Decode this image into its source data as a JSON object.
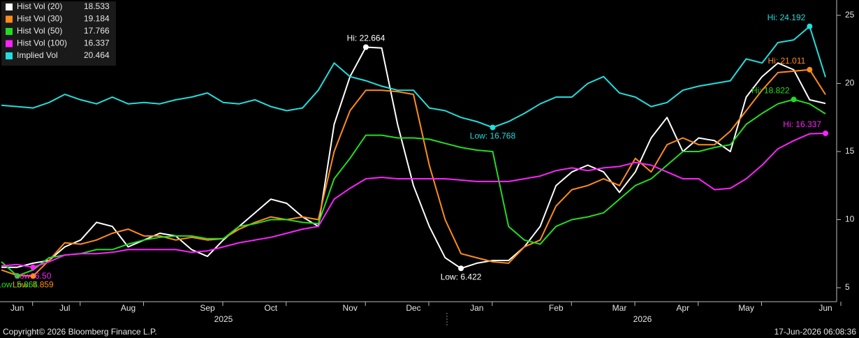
{
  "chart_data": {
    "type": "line",
    "categories": [
      null,
      "Jun",
      null,
      null,
      "Jul",
      null,
      null,
      null,
      "Aug",
      null,
      null,
      null,
      null,
      "Sep",
      null,
      null,
      null,
      "Oct",
      null,
      null,
      null,
      null,
      "Nov",
      null,
      null,
      null,
      "Dec",
      null,
      null,
      null,
      "Jan",
      null,
      null,
      null,
      null,
      "Feb",
      null,
      null,
      null,
      "Mar",
      null,
      null,
      null,
      "Apr",
      null,
      null,
      null,
      "May",
      null,
      null,
      null,
      null,
      "Jun"
    ],
    "year_labels": [
      "2025",
      "2026"
    ],
    "ylim": [
      4,
      26.1
    ],
    "yticks": [
      5,
      10,
      15,
      20,
      25
    ],
    "grid": false,
    "legend": "top-left",
    "footer": "Copyright© 2026 Bloomberg Finance L.P.",
    "timestamp": "17-Jun-2026 06:08:36",
    "series": [
      {
        "name": "Hist Vol (20)",
        "color": "#ffffff",
        "values": [
          6.5,
          6.5,
          6.8,
          7.0,
          8.0,
          8.5,
          9.8,
          9.5,
          8.0,
          8.5,
          9.0,
          8.8,
          7.8,
          7.3,
          8.5,
          9.5,
          10.5,
          11.5,
          11.2,
          10.2,
          9.5,
          17,
          20.5,
          22.664,
          22.6,
          17,
          12.5,
          9.5,
          7.2,
          6.422,
          6.8,
          7,
          7,
          8,
          9.5,
          12.5,
          13.5,
          14,
          13.5,
          12,
          13.5,
          16,
          17.5,
          15,
          16,
          15.8,
          15,
          19,
          20.5,
          21.5,
          21,
          18.8,
          18.533
        ],
        "annotations": [
          "Hi: 22.664",
          "Low: 6.422"
        ]
      },
      {
        "name": "Hist Vol (30)",
        "color": "#ff8c1a",
        "values": [
          6.3,
          5.9,
          5.859,
          7,
          8.3,
          8.2,
          8.5,
          9.0,
          9.3,
          8.8,
          8.8,
          8.5,
          8.7,
          8.5,
          8.6,
          9.3,
          9.8,
          10.2,
          10.0,
          10.2,
          10.0,
          15,
          18,
          19.5,
          19.5,
          19.4,
          19.2,
          14,
          10,
          7.5,
          7.2,
          6.9,
          6.8,
          8,
          8.5,
          11,
          12.2,
          12.5,
          13,
          12.5,
          14.5,
          13.5,
          15.5,
          16,
          15.5,
          15.5,
          16.5,
          18,
          19.5,
          20.8,
          20.9,
          21.011,
          19.184
        ],
        "annotations": [
          "Hi: 21.011",
          "Low: 5.859"
        ]
      },
      {
        "name": "Hist Vol (50)",
        "color": "#22dd22",
        "values": [
          6.9,
          5.864,
          6.3,
          7.2,
          7.4,
          7.5,
          7.8,
          7.8,
          8.2,
          8.5,
          8.7,
          8.8,
          8.8,
          8.6,
          8.6,
          9.5,
          9.7,
          10,
          10,
          9.8,
          9.7,
          13,
          14.5,
          16.2,
          16.2,
          16,
          16,
          15.9,
          15.6,
          15.3,
          15.1,
          15.0,
          9.5,
          8.5,
          8.2,
          9.5,
          10,
          10.2,
          10.5,
          11.5,
          12.5,
          13,
          14,
          15,
          15,
          15.3,
          15.5,
          17,
          17.8,
          18.5,
          18.822,
          18.5,
          17.766
        ],
        "annotations": [
          "Hi: 18.822",
          "Low: 5.864"
        ]
      },
      {
        "name": "Hist Vol (100)",
        "color": "#ff22ff",
        "values": [
          6.6,
          6.7,
          6.5,
          6.9,
          7.4,
          7.5,
          7.5,
          7.6,
          7.8,
          7.8,
          7.8,
          7.8,
          7.6,
          7.7,
          8.0,
          8.3,
          8.5,
          8.7,
          9.0,
          9.3,
          9.5,
          11.5,
          12.3,
          13,
          13.1,
          13,
          13,
          13,
          13,
          12.9,
          12.8,
          12.8,
          12.8,
          13,
          13.2,
          13.6,
          13.8,
          13.6,
          13.8,
          13.9,
          14.2,
          14.0,
          13.5,
          13,
          13,
          12.2,
          12.3,
          13,
          14,
          15.2,
          15.8,
          16.3,
          16.337
        ],
        "annotations": [
          "Hi: 16.337",
          "Low: 6.50"
        ]
      },
      {
        "name": "Implied Vol",
        "color": "#22dddd",
        "values": [
          18.4,
          18.3,
          18.2,
          18.6,
          19.2,
          18.8,
          18.5,
          19.0,
          18.5,
          18.6,
          18.5,
          18.8,
          19.0,
          19.3,
          18.6,
          18.5,
          18.8,
          18.3,
          18.0,
          18.2,
          19.5,
          21.5,
          20.5,
          20.2,
          19.8,
          19.5,
          19.5,
          18.2,
          18.0,
          17.5,
          17.2,
          16.768,
          17.2,
          17.8,
          18.5,
          19,
          19,
          20,
          20.5,
          19.3,
          19.0,
          18.3,
          18.6,
          19.5,
          19.8,
          20,
          20.2,
          21.8,
          21.5,
          23,
          23.2,
          24.192,
          20.464
        ],
        "annotations": [
          "Hi: 24.192",
          "Low: 16.768"
        ]
      }
    ]
  }
}
